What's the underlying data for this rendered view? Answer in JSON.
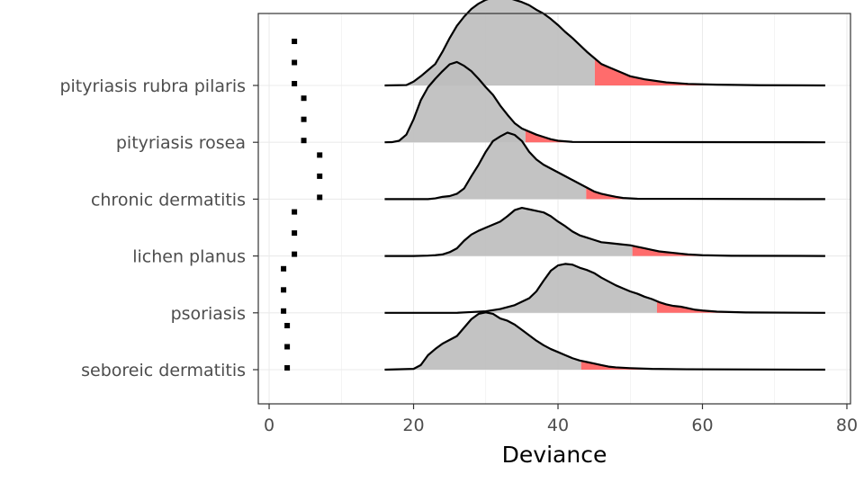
{
  "chart_data": {
    "type": "ridgeline",
    "title": "",
    "xlabel": "Deviance",
    "ylabel": "",
    "xlim": [
      -1.5,
      80.5
    ],
    "x_ticks": [
      0,
      20,
      40,
      60,
      80
    ],
    "grid": true,
    "legend": "none",
    "colors": {
      "density_fill": "#bebebe",
      "tail_fill": "#ff5c5c",
      "line": "#000000",
      "panel_border": "#333333",
      "grid": "#ebebeb"
    },
    "categories": [
      "seboreic dermatitis",
      "psoriasis",
      "lichen planus",
      "chronic dermatitis",
      "pityriasis rosea",
      "pityriasis rubra pilaris"
    ],
    "series": [
      {
        "category": "seboreic dermatitis",
        "points": [
          2.5,
          2.5,
          2.5
        ],
        "tail_start": 43.2,
        "density": [
          [
            16,
            0
          ],
          [
            20,
            0.01
          ],
          [
            21,
            0.06
          ],
          [
            22,
            0.19
          ],
          [
            23,
            0.27
          ],
          [
            24,
            0.34
          ],
          [
            25,
            0.39
          ],
          [
            26,
            0.44
          ],
          [
            27,
            0.55
          ],
          [
            28,
            0.66
          ],
          [
            29,
            0.73
          ],
          [
            30,
            0.75
          ],
          [
            31,
            0.73
          ],
          [
            32,
            0.67
          ],
          [
            33,
            0.64
          ],
          [
            34,
            0.59
          ],
          [
            35,
            0.52
          ],
          [
            36,
            0.45
          ],
          [
            37,
            0.38
          ],
          [
            38,
            0.32
          ],
          [
            39,
            0.27
          ],
          [
            40,
            0.23
          ],
          [
            41,
            0.19
          ],
          [
            42,
            0.15
          ],
          [
            43,
            0.12
          ],
          [
            44,
            0.1
          ],
          [
            45,
            0.08
          ],
          [
            46,
            0.06
          ],
          [
            47,
            0.04
          ],
          [
            48,
            0.03
          ],
          [
            50,
            0.02
          ],
          [
            53,
            0.01
          ],
          [
            58,
            0.005
          ],
          [
            77,
            0
          ]
        ]
      },
      {
        "category": "psoriasis",
        "points": [
          2.0,
          2.0,
          2.0
        ],
        "tail_start": 53.7,
        "density": [
          [
            16,
            0
          ],
          [
            26,
            0
          ],
          [
            28,
            0.01
          ],
          [
            30,
            0.02
          ],
          [
            32,
            0.05
          ],
          [
            34,
            0.1
          ],
          [
            36,
            0.19
          ],
          [
            37,
            0.28
          ],
          [
            38,
            0.42
          ],
          [
            39,
            0.55
          ],
          [
            40,
            0.62
          ],
          [
            41,
            0.64
          ],
          [
            42,
            0.63
          ],
          [
            43,
            0.59
          ],
          [
            44,
            0.56
          ],
          [
            45,
            0.52
          ],
          [
            46,
            0.46
          ],
          [
            47,
            0.41
          ],
          [
            48,
            0.36
          ],
          [
            49,
            0.32
          ],
          [
            50,
            0.28
          ],
          [
            51,
            0.25
          ],
          [
            52,
            0.21
          ],
          [
            53,
            0.18
          ],
          [
            54,
            0.14
          ],
          [
            55,
            0.11
          ],
          [
            56,
            0.09
          ],
          [
            57,
            0.08
          ],
          [
            58,
            0.06
          ],
          [
            59,
            0.04
          ],
          [
            60,
            0.03
          ],
          [
            62,
            0.015
          ],
          [
            66,
            0.005
          ],
          [
            77,
            0
          ]
        ]
      },
      {
        "category": "lichen planus",
        "points": [
          3.5,
          3.5,
          3.5
        ],
        "tail_start": 50.3,
        "density": [
          [
            16,
            0
          ],
          [
            20,
            0
          ],
          [
            22,
            0.005
          ],
          [
            23,
            0.01
          ],
          [
            24,
            0.02
          ],
          [
            25,
            0.05
          ],
          [
            26,
            0.1
          ],
          [
            27,
            0.2
          ],
          [
            28,
            0.28
          ],
          [
            29,
            0.33
          ],
          [
            30,
            0.37
          ],
          [
            31,
            0.41
          ],
          [
            32,
            0.45
          ],
          [
            33,
            0.52
          ],
          [
            34,
            0.6
          ],
          [
            35,
            0.63
          ],
          [
            36,
            0.61
          ],
          [
            37,
            0.59
          ],
          [
            38,
            0.57
          ],
          [
            39,
            0.52
          ],
          [
            40,
            0.45
          ],
          [
            41,
            0.39
          ],
          [
            42,
            0.32
          ],
          [
            43,
            0.27
          ],
          [
            44,
            0.24
          ],
          [
            45,
            0.21
          ],
          [
            46,
            0.18
          ],
          [
            47,
            0.17
          ],
          [
            48,
            0.16
          ],
          [
            49,
            0.15
          ],
          [
            50,
            0.14
          ],
          [
            51,
            0.12
          ],
          [
            52,
            0.1
          ],
          [
            53,
            0.08
          ],
          [
            54,
            0.06
          ],
          [
            55,
            0.05
          ],
          [
            56,
            0.04
          ],
          [
            58,
            0.02
          ],
          [
            60,
            0.01
          ],
          [
            64,
            0.003
          ],
          [
            77,
            0
          ]
        ]
      },
      {
        "category": "chronic dermatitis",
        "points": [
          7.0,
          7.0,
          7.0
        ],
        "tail_start": 43.9,
        "density": [
          [
            16,
            0
          ],
          [
            22,
            0
          ],
          [
            23,
            0.01
          ],
          [
            24,
            0.03
          ],
          [
            25,
            0.04
          ],
          [
            26,
            0.07
          ],
          [
            27,
            0.14
          ],
          [
            28,
            0.3
          ],
          [
            29,
            0.45
          ],
          [
            30,
            0.62
          ],
          [
            31,
            0.76
          ],
          [
            32,
            0.82
          ],
          [
            33,
            0.87
          ],
          [
            34,
            0.84
          ],
          [
            35,
            0.76
          ],
          [
            36,
            0.62
          ],
          [
            37,
            0.52
          ],
          [
            38,
            0.45
          ],
          [
            39,
            0.4
          ],
          [
            40,
            0.35
          ],
          [
            41,
            0.3
          ],
          [
            42,
            0.25
          ],
          [
            43,
            0.2
          ],
          [
            44,
            0.15
          ],
          [
            45,
            0.1
          ],
          [
            46,
            0.07
          ],
          [
            47,
            0.05
          ],
          [
            48,
            0.03
          ],
          [
            49,
            0.015
          ],
          [
            51,
            0.005
          ],
          [
            77,
            0
          ]
        ]
      },
      {
        "category": "pityriasis rosea",
        "points": [
          4.8,
          4.8,
          4.8
        ],
        "tail_start": 35.5,
        "density": [
          [
            16,
            0
          ],
          [
            17,
            0.002
          ],
          [
            18,
            0.02
          ],
          [
            19,
            0.1
          ],
          [
            20,
            0.3
          ],
          [
            21,
            0.55
          ],
          [
            22,
            0.72
          ],
          [
            23,
            0.83
          ],
          [
            24,
            0.93
          ],
          [
            25,
            1.02
          ],
          [
            26,
            1.05
          ],
          [
            27,
            1.0
          ],
          [
            28,
            0.93
          ],
          [
            29,
            0.83
          ],
          [
            30,
            0.72
          ],
          [
            31,
            0.62
          ],
          [
            32,
            0.48
          ],
          [
            33,
            0.36
          ],
          [
            34,
            0.25
          ],
          [
            35,
            0.18
          ],
          [
            36,
            0.14
          ],
          [
            37,
            0.1
          ],
          [
            38,
            0.07
          ],
          [
            39,
            0.04
          ],
          [
            40,
            0.02
          ],
          [
            42,
            0.005
          ],
          [
            77,
            0
          ]
        ]
      },
      {
        "category": "pityriasis rubra pilaris",
        "points": [
          3.5,
          3.5,
          3.5
        ],
        "tail_start": 45.1,
        "density": [
          [
            16,
            0
          ],
          [
            19,
            0.005
          ],
          [
            20,
            0.05
          ],
          [
            21,
            0.12
          ],
          [
            22,
            0.2
          ],
          [
            23,
            0.28
          ],
          [
            24,
            0.44
          ],
          [
            25,
            0.62
          ],
          [
            26,
            0.78
          ],
          [
            27,
            0.9
          ],
          [
            28,
            1.0
          ],
          [
            29,
            1.07
          ],
          [
            30,
            1.12
          ],
          [
            31,
            1.15
          ],
          [
            32,
            1.16
          ],
          [
            33,
            1.15
          ],
          [
            34,
            1.12
          ],
          [
            35,
            1.09
          ],
          [
            36,
            1.05
          ],
          [
            37,
            0.99
          ],
          [
            38,
            0.94
          ],
          [
            39,
            0.87
          ],
          [
            40,
            0.79
          ],
          [
            41,
            0.7
          ],
          [
            42,
            0.62
          ],
          [
            43,
            0.53
          ],
          [
            44,
            0.44
          ],
          [
            45,
            0.36
          ],
          [
            46,
            0.28
          ],
          [
            47,
            0.24
          ],
          [
            48,
            0.2
          ],
          [
            49,
            0.16
          ],
          [
            50,
            0.12
          ],
          [
            52,
            0.08
          ],
          [
            55,
            0.04
          ],
          [
            58,
            0.02
          ],
          [
            62,
            0.01
          ],
          [
            68,
            0.003
          ],
          [
            77,
            0
          ]
        ]
      }
    ]
  }
}
